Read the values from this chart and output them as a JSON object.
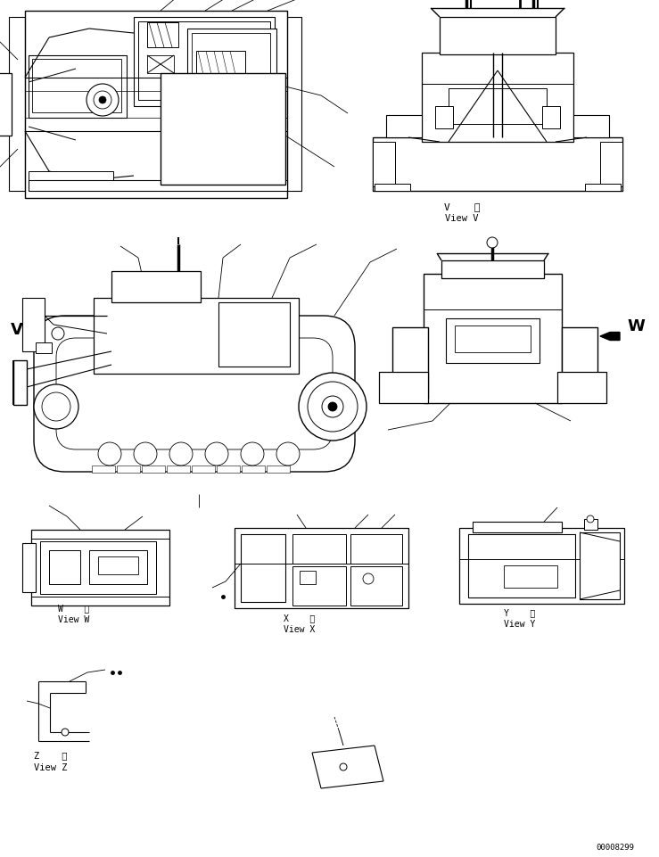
{
  "bg_color": "#ffffff",
  "line_color": "#000000",
  "fig_width": 7.39,
  "fig_height": 9.62,
  "dpi": 100,
  "page_number": "00008299",
  "view_labels": {
    "V": [
      "V    視",
      "View V"
    ],
    "W_side": [
      "W    視",
      "View W"
    ],
    "X": [
      "X    視",
      "View X"
    ],
    "Y": [
      "Y    視",
      "View Y"
    ],
    "Z": [
      "Z    視",
      "View Z"
    ]
  },
  "arrow_labels": {
    "V_arrow": "V",
    "W_arrow": "W"
  }
}
